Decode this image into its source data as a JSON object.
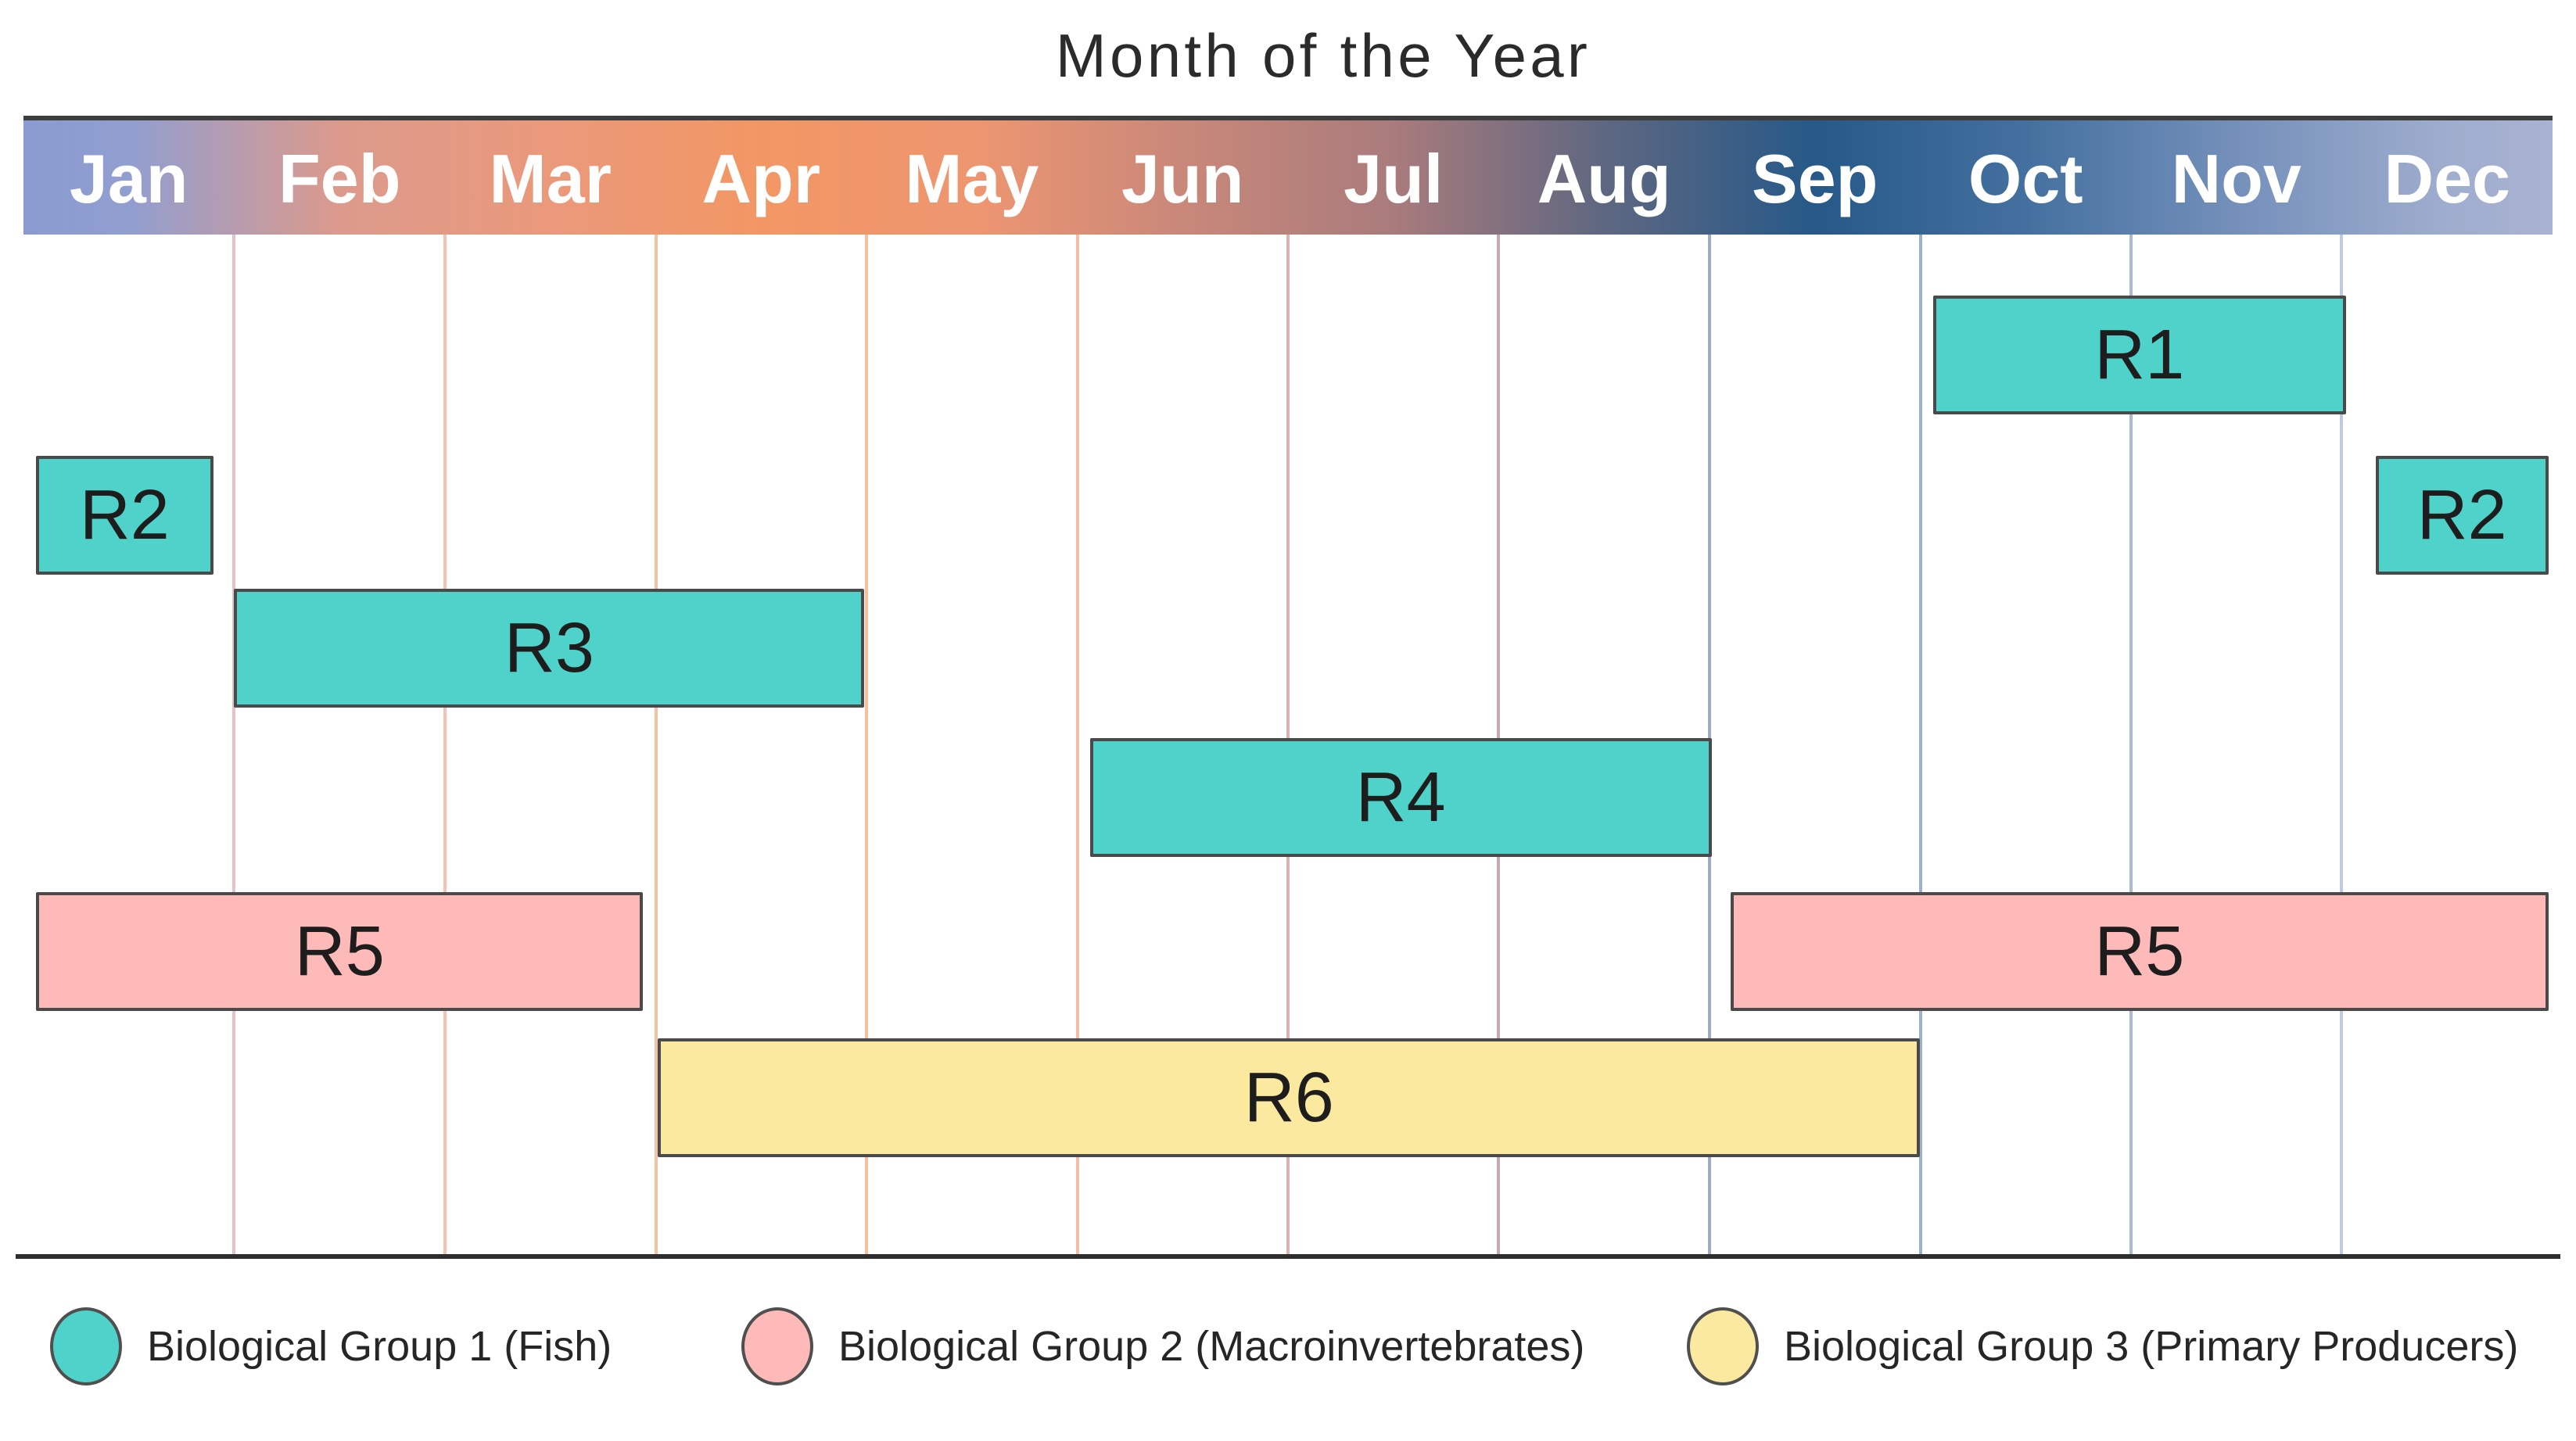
{
  "title": "Month of the Year",
  "chart_data": {
    "type": "bar",
    "subtype": "gantt-season-timeline",
    "title": "Month of the Year",
    "x_axis_label": "Month of the Year",
    "x_range_months": [
      0,
      12
    ],
    "months": [
      "Jan",
      "Feb",
      "Mar",
      "Apr",
      "May",
      "Jun",
      "Jul",
      "Aug",
      "Sep",
      "Oct",
      "Nov",
      "Dec"
    ],
    "grid": true,
    "header_gradient_stops": [
      {
        "pos": 0,
        "color": "#8a9bd1"
      },
      {
        "pos": 4.2,
        "color": "#919ed0"
      },
      {
        "pos": 12.5,
        "color": "#dc9a8c"
      },
      {
        "pos": 20.8,
        "color": "#ea997b"
      },
      {
        "pos": 29.2,
        "color": "#f29764"
      },
      {
        "pos": 37.5,
        "color": "#ee9670"
      },
      {
        "pos": 45.8,
        "color": "#c9887a"
      },
      {
        "pos": 54.2,
        "color": "#a97b7c"
      },
      {
        "pos": 62.5,
        "color": "#5e6781"
      },
      {
        "pos": 70.8,
        "color": "#265988"
      },
      {
        "pos": 79.2,
        "color": "#44709f"
      },
      {
        "pos": 87.5,
        "color": "#7490ba"
      },
      {
        "pos": 95.8,
        "color": "#9fadce"
      },
      {
        "pos": 100,
        "color": "#aab2d3"
      }
    ],
    "gridline_colors": [
      "#e3c3c6",
      "#f3c3b3",
      "#f6c0a4",
      "#f7bf9f",
      "#f3bfa6",
      "#ddb3ae",
      "#c7a9b5",
      "#9fadc2",
      "#9db1cb",
      "#a9bad2",
      "#c0cadf"
    ],
    "groups": [
      {
        "id": 1,
        "name": "Biological Group 1 (Fish)",
        "fill": "#4ed2c9"
      },
      {
        "id": 2,
        "name": "Biological Group 2 (Macroinvertebrates)",
        "fill": "#fdbab8"
      },
      {
        "id": 3,
        "name": "Biological Group 3 (Primary Producers)",
        "fill": "#fbe9a0"
      }
    ],
    "bar_border_color": "#4a4a4a",
    "axis_line_color": "#2e2e2e",
    "bars": [
      {
        "label": "R1",
        "group": 1,
        "row": 0,
        "start_month": 9.06,
        "end_month": 11.02,
        "period": "Oct-Nov"
      },
      {
        "label": "R2",
        "group": 1,
        "row": 1,
        "start_month": 0.06,
        "end_month": 0.9,
        "period": "Jan segment (period wraps Dec-Jan)"
      },
      {
        "label": "R2",
        "group": 1,
        "row": 1,
        "start_month": 11.16,
        "end_month": 11.98,
        "period": "Dec segment (period wraps Dec-Jan)"
      },
      {
        "label": "R3",
        "group": 1,
        "row": 2,
        "start_month": 1.0,
        "end_month": 3.99,
        "period": "Feb-Apr"
      },
      {
        "label": "R4",
        "group": 1,
        "row": 3,
        "start_month": 5.06,
        "end_month": 8.01,
        "period": "Jun-Aug"
      },
      {
        "label": "R5",
        "group": 2,
        "row": 4,
        "start_month": 0.06,
        "end_month": 2.94,
        "period": "Jan-Mar segment (period wraps Sep-Mar)"
      },
      {
        "label": "R5",
        "group": 2,
        "row": 4,
        "start_month": 8.1,
        "end_month": 11.98,
        "period": "Sep-Dec segment (period wraps Sep-Mar)"
      },
      {
        "label": "R6",
        "group": 3,
        "row": 5,
        "start_month": 3.01,
        "end_month": 9.0,
        "period": "Apr-Sep"
      }
    ]
  },
  "legend": {
    "items": [
      {
        "label": "Biological Group 1 (Fish)",
        "color": "#4ed2c9"
      },
      {
        "label": "Biological Group 2 (Macroinvertebrates)",
        "color": "#fdbab8"
      },
      {
        "label": "Biological Group 3 (Primary Producers)",
        "color": "#fbe9a0"
      }
    ]
  }
}
